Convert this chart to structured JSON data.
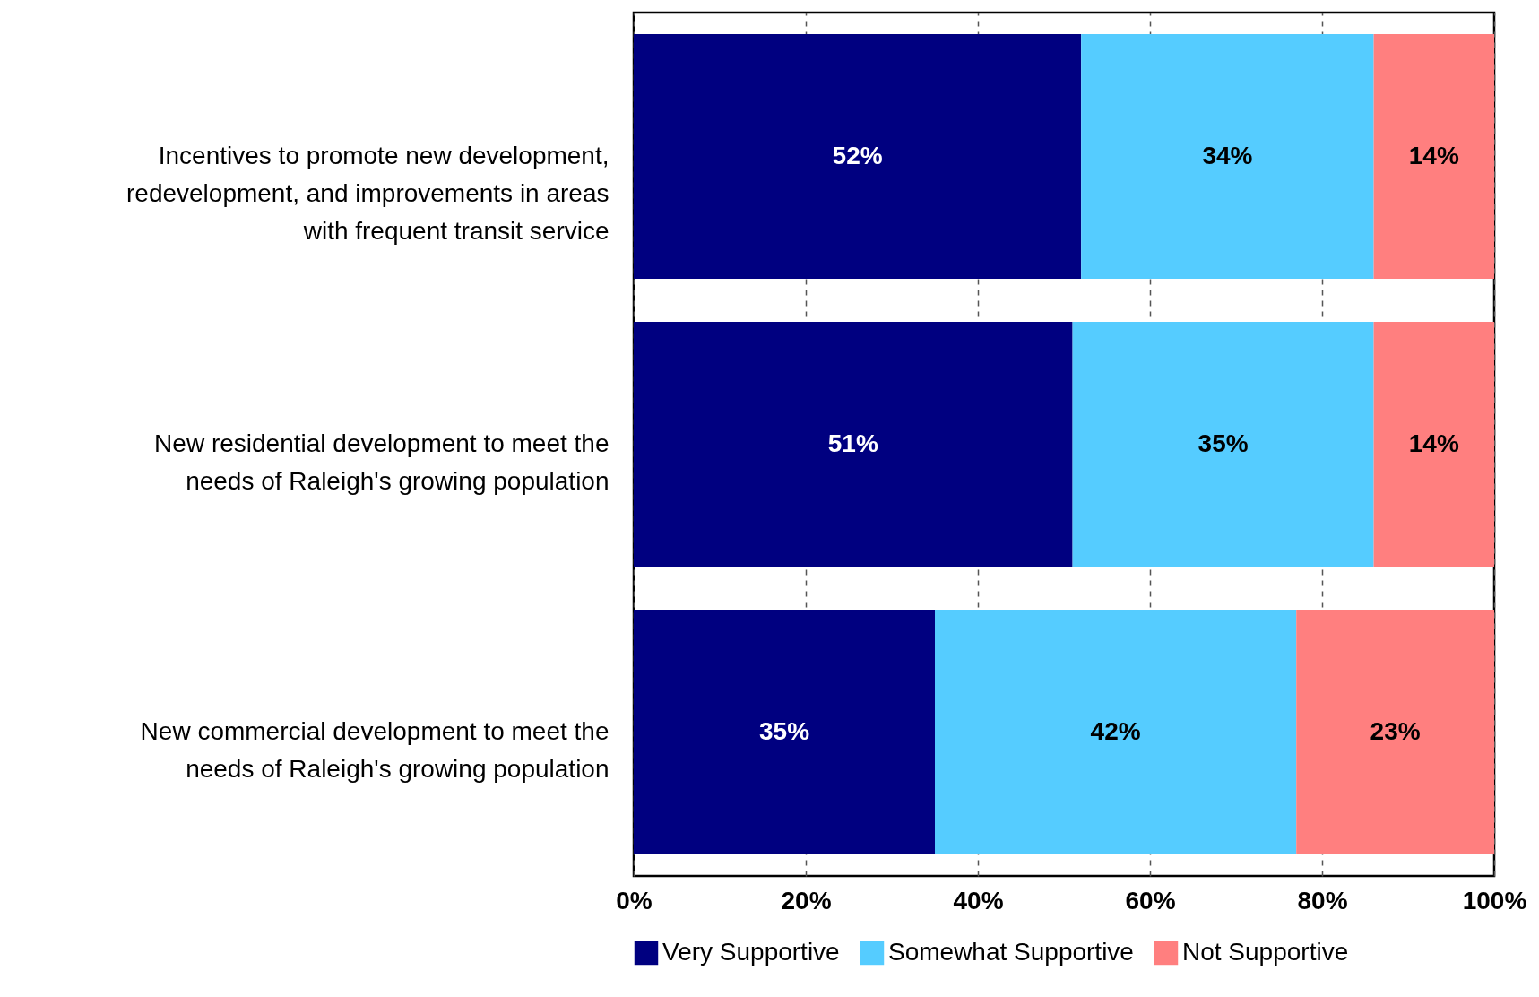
{
  "chart_data": {
    "type": "bar",
    "orientation": "horizontal",
    "stacked": true,
    "categories": [
      "Incentives to promote new development, redevelopment, and improvements in areas with frequent transit service",
      "New residential development to meet the needs of Raleigh's growing population",
      "New commercial development to meet the needs of Raleigh's growing population"
    ],
    "series": [
      {
        "name": "Very Supportive",
        "color": "#000080",
        "values": [
          52,
          51,
          35
        ],
        "value_labels": [
          "52%",
          "51%",
          "35%"
        ]
      },
      {
        "name": "Somewhat Supportive",
        "color": "#55ccff",
        "values": [
          34,
          35,
          42
        ],
        "value_labels": [
          "34%",
          "35%",
          "42%"
        ]
      },
      {
        "name": "Not Supportive",
        "color": "#ff7f7f",
        "values": [
          14,
          14,
          23
        ],
        "value_labels": [
          "14%",
          "14%",
          "23%"
        ]
      }
    ],
    "xlim": [
      0,
      100
    ],
    "xticks": [
      {
        "value": 0,
        "label": "0%"
      },
      {
        "value": 20,
        "label": "20%"
      },
      {
        "value": 40,
        "label": "40%"
      },
      {
        "value": 60,
        "label": "60%"
      },
      {
        "value": 80,
        "label": "80%"
      },
      {
        "value": 100,
        "label": "100%"
      }
    ],
    "grid": "x",
    "legend": "bottom"
  }
}
